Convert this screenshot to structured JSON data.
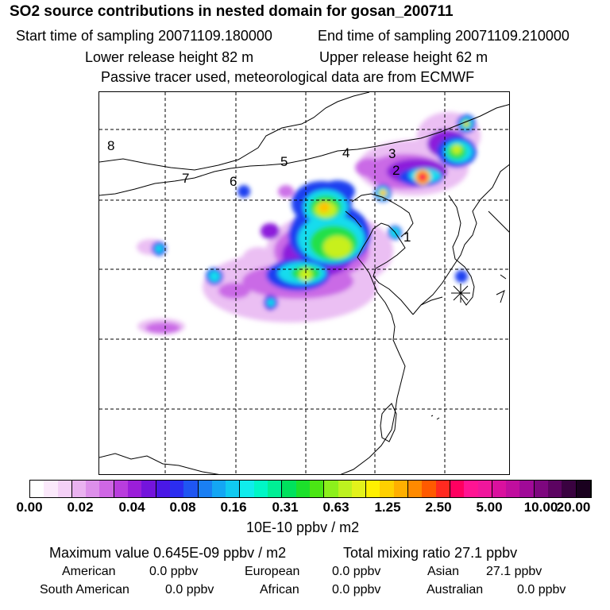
{
  "header": {
    "title": "SO2 source contributions in nested domain for gosan_200711",
    "start_label": "Start time of sampling 20071109.180000",
    "end_label": "End time of sampling 20071109.210000",
    "lower_label": "Lower release height   82 m",
    "upper_label": "Upper release height   62 m",
    "info_line": "Passive tracer used, meteorological data are from ECMWF"
  },
  "map": {
    "region_labels": [
      "1",
      "2",
      "3",
      "4",
      "5",
      "6",
      "7",
      "8"
    ],
    "receptor_marker": "asterisk-marker"
  },
  "colorbar": {
    "tick_labels": [
      "0.00",
      "0.02",
      "0.04",
      "0.08",
      "0.16",
      "0.31",
      "0.63",
      "1.25",
      "2.50",
      "5.00",
      "10.00",
      "20.00"
    ],
    "unit": "10E-10 ppbv / m2",
    "colors": [
      "#ffffff",
      "#fbe9fb",
      "#f4d0f6",
      "#eab2f0",
      "#dd8fea",
      "#cf67e4",
      "#b93ddd",
      "#9b1ed9",
      "#7414dc",
      "#4a18e6",
      "#2b2df0",
      "#1f56f2",
      "#1a7ff3",
      "#14a6f4",
      "#10caf1",
      "#10ecec",
      "#00f7c6",
      "#00ef95",
      "#00e15d",
      "#1ce02b",
      "#4be614",
      "#8cf01c",
      "#bdf21f",
      "#e3f21b",
      "#fff000",
      "#ffd000",
      "#ffaf00",
      "#ff8a00",
      "#ff5a00",
      "#ff2a20",
      "#ff0060",
      "#ff1493",
      "#f0169c",
      "#da119e",
      "#c00e9e",
      "#a00a98",
      "#7e077f",
      "#5c0461",
      "#3a0240",
      "#1a011f"
    ]
  },
  "stats": {
    "max_value": "Maximum value  0.645E-09 ppbv / m2",
    "total_mixing": "Total mixing ratio       27.1 ppbv"
  },
  "sources": {
    "american": "American",
    "american_val": "0.0 ppbv",
    "european": "European",
    "european_val": "0.0 ppbv",
    "asian": "Asian",
    "asian_val": "27.1 ppbv",
    "south_american": "South American",
    "south_american_val": "0.0 ppbv",
    "african": "African",
    "african_val": "0.0 ppbv",
    "australian": "Australian",
    "australian_val": "0.0 ppbv"
  }
}
